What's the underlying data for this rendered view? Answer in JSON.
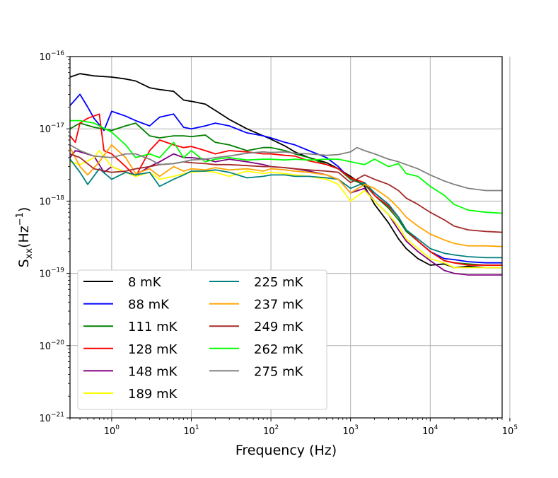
{
  "chart_data": {
    "type": "line",
    "xscale": "log",
    "yscale": "log",
    "xlabel": "Frequency (Hz)",
    "ylabel": {
      "main": "S",
      "sub": "xx",
      "unit_open": "(Hz",
      "unit_exp": "−1",
      "unit_close": ")"
    },
    "xlim": [
      0.3,
      80000
    ],
    "ylim": [
      1e-21,
      1e-16
    ],
    "x_ticks": [
      {
        "base": "10",
        "exp": "0",
        "value": 1
      },
      {
        "base": "10",
        "exp": "1",
        "value": 10
      },
      {
        "base": "10",
        "exp": "2",
        "value": 100
      },
      {
        "base": "10",
        "exp": "3",
        "value": 1000
      },
      {
        "base": "10",
        "exp": "4",
        "value": 10000
      },
      {
        "base": "10",
        "exp": "5",
        "value": 100000
      }
    ],
    "y_ticks": [
      {
        "base": "10",
        "exp": "−21",
        "value": 1e-21
      },
      {
        "base": "10",
        "exp": "−20",
        "value": 1e-20
      },
      {
        "base": "10",
        "exp": "−19",
        "value": 1e-19
      },
      {
        "base": "10",
        "exp": "−18",
        "value": 1e-18
      },
      {
        "base": "10",
        "exp": "−17",
        "value": 1e-17
      },
      {
        "base": "10",
        "exp": "−16",
        "value": 1e-16
      }
    ],
    "grid": true,
    "legend_position": "lower-left",
    "series": [
      {
        "name": "8 mK",
        "color": "#000000",
        "x": [
          0.3,
          0.4,
          0.6,
          1,
          1.5,
          2,
          3,
          4,
          6,
          8,
          10,
          15,
          20,
          30,
          50,
          80,
          100,
          150,
          200,
          300,
          500,
          700,
          1000,
          1500,
          2000,
          3000,
          4000,
          5000,
          7000,
          10000,
          15000,
          20000,
          30000,
          50000,
          80000
        ],
        "y": [
          5.2e-17,
          5.8e-17,
          5.4e-17,
          5.2e-17,
          4.9e-17,
          4.6e-17,
          3.7e-17,
          3.5e-17,
          3.3e-17,
          2.5e-17,
          2.4e-17,
          2.2e-17,
          1.8e-17,
          1.35e-17,
          1e-17,
          8e-18,
          7.2e-18,
          5.8e-18,
          4.8e-18,
          4e-18,
          3.4e-18,
          2.8e-18,
          2.2e-18,
          1.6e-18,
          9e-19,
          5e-19,
          3e-19,
          2.2e-19,
          1.6e-19,
          1.3e-19,
          1.35e-19,
          1.2e-19,
          1.25e-19,
          1.2e-19,
          1.2e-19
        ]
      },
      {
        "name": "88 mK",
        "color": "#0000ff",
        "x": [
          0.3,
          0.4,
          0.5,
          0.6,
          0.8,
          1,
          1.5,
          2,
          3,
          4,
          6,
          8,
          10,
          15,
          20,
          30,
          50,
          80,
          100,
          150,
          200,
          300,
          500,
          700,
          1000,
          1500,
          2000,
          3000,
          4000,
          5000,
          7000,
          10000,
          15000,
          20000,
          30000,
          50000,
          80000
        ],
        "y": [
          2.1e-17,
          3e-17,
          2e-17,
          1.4e-17,
          9.5e-18,
          1.75e-17,
          1.5e-17,
          1.3e-17,
          1.1e-17,
          1.45e-17,
          1.6e-17,
          1.05e-17,
          1e-17,
          1.1e-17,
          1.2e-17,
          1.1e-17,
          8.8e-18,
          8e-18,
          7.5e-18,
          6.5e-18,
          6e-18,
          5e-18,
          4e-18,
          3e-18,
          2e-18,
          1.7e-18,
          1.3e-18,
          9e-19,
          6e-19,
          4e-19,
          2.8e-19,
          2e-19,
          1.6e-19,
          1.55e-19,
          1.45e-19,
          1.4e-19,
          1.4e-19
        ]
      },
      {
        "name": "111 mK",
        "color": "#008000",
        "x": [
          0.3,
          0.4,
          0.6,
          1,
          1.5,
          2,
          3,
          4,
          6,
          8,
          10,
          15,
          20,
          30,
          50,
          80,
          100,
          150,
          200,
          300,
          500,
          700,
          1000,
          1500,
          2000,
          3000,
          4000,
          5000,
          7000,
          10000,
          15000,
          20000,
          30000,
          50000,
          80000
        ],
        "y": [
          1e-17,
          1.2e-17,
          1.05e-17,
          9.5e-18,
          1.1e-17,
          1.2e-17,
          8e-18,
          7.5e-18,
          8e-18,
          8e-18,
          7.8e-18,
          8.2e-18,
          6.5e-18,
          6e-18,
          5e-18,
          5.5e-18,
          5.5e-18,
          5e-18,
          4.5e-18,
          4e-18,
          3.2e-18,
          2.8e-18,
          2e-18,
          1.7e-18,
          1.2e-18,
          8e-19,
          5.5e-19,
          3.8e-19,
          2.8e-19,
          2e-19,
          1.5e-19,
          1.4e-19,
          1.35e-19,
          1.3e-19,
          1.3e-19
        ]
      },
      {
        "name": "128 mK",
        "color": "#ff0000",
        "x": [
          0.3,
          0.35,
          0.4,
          0.5,
          0.7,
          0.8,
          1,
          1.5,
          2,
          3,
          4,
          6,
          8,
          10,
          15,
          20,
          30,
          50,
          80,
          100,
          150,
          200,
          300,
          500,
          700,
          1000,
          1500,
          2000,
          3000,
          4000,
          5000,
          7000,
          10000,
          15000,
          20000,
          30000,
          50000,
          80000
        ],
        "y": [
          8e-18,
          6.5e-18,
          1.2e-17,
          1.4e-17,
          1.6e-17,
          5e-18,
          4.5e-18,
          3e-18,
          2.2e-18,
          5e-18,
          7e-18,
          6e-18,
          5.5e-18,
          5.7e-18,
          5e-18,
          4.5e-18,
          5e-18,
          4.8e-18,
          4.5e-18,
          4.5e-18,
          4.3e-18,
          4.2e-18,
          3.6e-18,
          3.2e-18,
          2.8e-18,
          2.1e-18,
          1.8e-18,
          1.2e-18,
          8.5e-19,
          6e-19,
          4e-19,
          2.8e-19,
          2e-19,
          1.5e-19,
          1.4e-19,
          1.3e-19,
          1.3e-19,
          1.3e-19
        ]
      },
      {
        "name": "148 mK",
        "color": "#800080",
        "x": [
          0.3,
          0.35,
          0.4,
          0.6,
          0.8,
          1,
          1.5,
          2,
          3,
          4,
          6,
          8,
          10,
          15,
          20,
          30,
          50,
          80,
          100,
          150,
          200,
          300,
          500,
          700,
          1000,
          1500,
          2000,
          3000,
          4000,
          5000,
          7000,
          10000,
          15000,
          20000,
          30000,
          50000,
          80000
        ],
        "y": [
          4e-18,
          5e-18,
          4.8e-18,
          4.2e-18,
          2.5e-18,
          3e-18,
          2.5e-18,
          2.3e-18,
          3e-18,
          3.5e-18,
          4.5e-18,
          4e-18,
          4e-18,
          3.8e-18,
          3.5e-18,
          3.8e-18,
          3.5e-18,
          3.2e-18,
          3e-18,
          2.9e-18,
          2.8e-18,
          2.6e-18,
          2.3e-18,
          2e-18,
          1.3e-18,
          1.5e-18,
          1e-18,
          6.5e-19,
          4e-19,
          2.8e-19,
          2e-19,
          1.5e-19,
          1.1e-19,
          1e-19,
          9.5e-20,
          9.5e-20,
          9.5e-20
        ]
      },
      {
        "name": "189 mK",
        "color": "#ffff00",
        "x": [
          0.3,
          0.4,
          0.6,
          0.7,
          1,
          1.5,
          2,
          3,
          4,
          6,
          8,
          10,
          15,
          20,
          30,
          50,
          80,
          100,
          150,
          200,
          300,
          500,
          700,
          1000,
          1500,
          2000,
          3000,
          4000,
          5000,
          7000,
          10000,
          15000,
          20000,
          30000,
          50000,
          80000
        ],
        "y": [
          3.5e-18,
          3.2e-18,
          4e-18,
          5e-18,
          3e-18,
          2.5e-18,
          2.2e-18,
          2.5e-18,
          2e-18,
          2.2e-18,
          2.4e-18,
          2.5e-18,
          2.6e-18,
          2.5e-18,
          2.2e-18,
          2.6e-18,
          2.4e-18,
          2.5e-18,
          2.4e-18,
          2.3e-18,
          2.2e-18,
          2e-18,
          1.7e-18,
          1e-18,
          1.4e-18,
          1e-18,
          6.5e-19,
          4.5e-19,
          3e-19,
          2.2e-19,
          1.6e-19,
          1.4e-19,
          1.2e-19,
          1.2e-19,
          1.2e-19,
          1.2e-19
        ]
      },
      {
        "name": "225 mK",
        "color": "#008080",
        "x": [
          0.3,
          0.4,
          0.5,
          0.7,
          1,
          1.5,
          2,
          3,
          4,
          6,
          8,
          10,
          15,
          20,
          30,
          50,
          80,
          100,
          150,
          200,
          300,
          500,
          700,
          1000,
          1500,
          2000,
          3000,
          4000,
          5000,
          7000,
          10000,
          15000,
          20000,
          30000,
          50000,
          80000
        ],
        "y": [
          3.8e-18,
          2.5e-18,
          1.7e-18,
          2.8e-18,
          2e-18,
          2.5e-18,
          2.3e-18,
          2.5e-18,
          1.6e-18,
          2e-18,
          2.3e-18,
          2.6e-18,
          2.6e-18,
          2.7e-18,
          2.5e-18,
          2.1e-18,
          2.2e-18,
          2.3e-18,
          2.3e-18,
          2.2e-18,
          2.2e-18,
          2.1e-18,
          2e-18,
          1.5e-18,
          1.8e-18,
          1.3e-18,
          9e-19,
          6e-19,
          4e-19,
          3e-19,
          2.2e-19,
          1.9e-19,
          1.8e-19,
          1.7e-19,
          1.65e-19,
          1.65e-19
        ]
      },
      {
        "name": "237 mK",
        "color": "#ffa500",
        "x": [
          0.3,
          0.4,
          0.5,
          0.7,
          1,
          1.5,
          2,
          3,
          4,
          6,
          8,
          10,
          15,
          20,
          30,
          50,
          80,
          100,
          150,
          200,
          300,
          500,
          700,
          1000,
          1500,
          2000,
          3000,
          4000,
          5000,
          7000,
          10000,
          15000,
          20000,
          30000,
          50000,
          80000
        ],
        "y": [
          5.5e-18,
          3e-18,
          2.3e-18,
          3.5e-18,
          6e-18,
          4e-18,
          2.4e-18,
          2.8e-18,
          2.2e-18,
          3e-18,
          2.6e-18,
          2.8e-18,
          2.7e-18,
          2.9e-18,
          2.7e-18,
          2.8e-18,
          2.6e-18,
          2.8e-18,
          2.7e-18,
          2.6e-18,
          2.5e-18,
          2.3e-18,
          2e-18,
          1.3e-18,
          1.7e-18,
          1.5e-18,
          1.1e-18,
          8e-19,
          6e-19,
          4.5e-19,
          3.5e-19,
          2.9e-19,
          2.6e-19,
          2.4e-19,
          2.4e-19,
          2.35e-19
        ]
      },
      {
        "name": "249 mK",
        "color": "#a52a2a",
        "x": [
          0.3,
          0.4,
          0.6,
          1,
          1.5,
          2,
          3,
          4,
          6,
          8,
          10,
          15,
          20,
          30,
          50,
          80,
          100,
          150,
          200,
          300,
          500,
          700,
          1000,
          1500,
          2000,
          3000,
          4000,
          5000,
          7000,
          10000,
          15000,
          20000,
          30000,
          50000,
          80000
        ],
        "y": [
          4.5e-18,
          4e-18,
          2.8e-18,
          2.5e-18,
          2.6e-18,
          2.8e-18,
          3e-18,
          3.2e-18,
          3.3e-18,
          3.5e-18,
          3.4e-18,
          3.3e-18,
          3.2e-18,
          3.2e-18,
          3.1e-18,
          3e-18,
          3e-18,
          2.9e-18,
          2.8e-18,
          2.7e-18,
          2.6e-18,
          2.5e-18,
          1.8e-18,
          2.3e-18,
          2e-18,
          1.7e-18,
          1.4e-18,
          1.1e-18,
          9e-19,
          7e-19,
          5.5e-19,
          4.5e-19,
          4e-19,
          3.8e-19,
          3.7e-19
        ]
      },
      {
        "name": "262 mK",
        "color": "#00ff00",
        "x": [
          0.3,
          0.4,
          0.6,
          1,
          1.5,
          2,
          3,
          4,
          6,
          8,
          10,
          15,
          20,
          30,
          50,
          80,
          100,
          150,
          200,
          300,
          500,
          700,
          1000,
          1500,
          2000,
          3000,
          4000,
          5000,
          7000,
          10000,
          15000,
          20000,
          30000,
          50000,
          80000
        ],
        "y": [
          1.3e-17,
          1.3e-17,
          1.2e-17,
          9e-18,
          6e-18,
          4e-18,
          4.5e-18,
          4e-18,
          6.5e-18,
          4e-18,
          5e-18,
          3.5e-18,
          3.8e-18,
          4e-18,
          3.7e-18,
          3.8e-18,
          3.8e-18,
          3.7e-18,
          3.8e-18,
          3.7e-18,
          3.8e-18,
          3.8e-18,
          3.5e-18,
          3.2e-18,
          3.8e-18,
          3e-18,
          3.3e-18,
          2.4e-18,
          2.2e-18,
          1.6e-18,
          1.2e-18,
          9e-19,
          7.5e-19,
          7e-19,
          6.8e-19
        ]
      },
      {
        "name": "275 mK",
        "color": "#808080",
        "x": [
          0.3,
          0.4,
          0.6,
          1,
          1.5,
          2,
          3,
          4,
          6,
          8,
          10,
          15,
          20,
          30,
          50,
          80,
          100,
          150,
          200,
          300,
          500,
          700,
          1000,
          1200,
          1500,
          2000,
          3000,
          4000,
          5000,
          7000,
          10000,
          15000,
          20000,
          30000,
          50000,
          80000
        ],
        "y": [
          6e-18,
          5e-18,
          4.2e-18,
          4e-18,
          4.5e-18,
          4.5e-18,
          3.8e-18,
          3.2e-18,
          3.3e-18,
          3.5e-18,
          3.7e-18,
          3.8e-18,
          4e-18,
          4.2e-18,
          4.6e-18,
          4.8e-18,
          4.7e-18,
          4.8e-18,
          4.6e-18,
          4.5e-18,
          4.3e-18,
          4.4e-18,
          4.8e-18,
          5.5e-18,
          5e-18,
          4.5e-18,
          3.8e-18,
          3.5e-18,
          3.2e-18,
          2.8e-18,
          2.3e-18,
          1.9e-18,
          1.7e-18,
          1.5e-18,
          1.4e-18,
          1.4e-18
        ]
      }
    ]
  }
}
